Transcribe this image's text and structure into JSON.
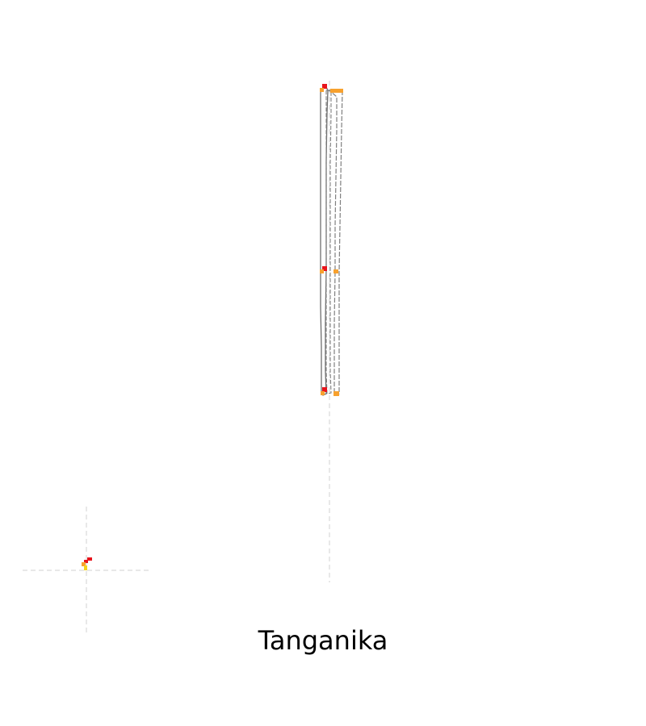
{
  "title": "Tanganika",
  "colors": {
    "background": "#ffffff",
    "crosshair": "#d9d9d9",
    "outline": "#808080",
    "outline_dark": "#6e6e6e",
    "marker_red": "#e8141c",
    "marker_orange": "#f7a12e",
    "marker_yellow": "#f5d21c",
    "text": "#000000"
  }
}
